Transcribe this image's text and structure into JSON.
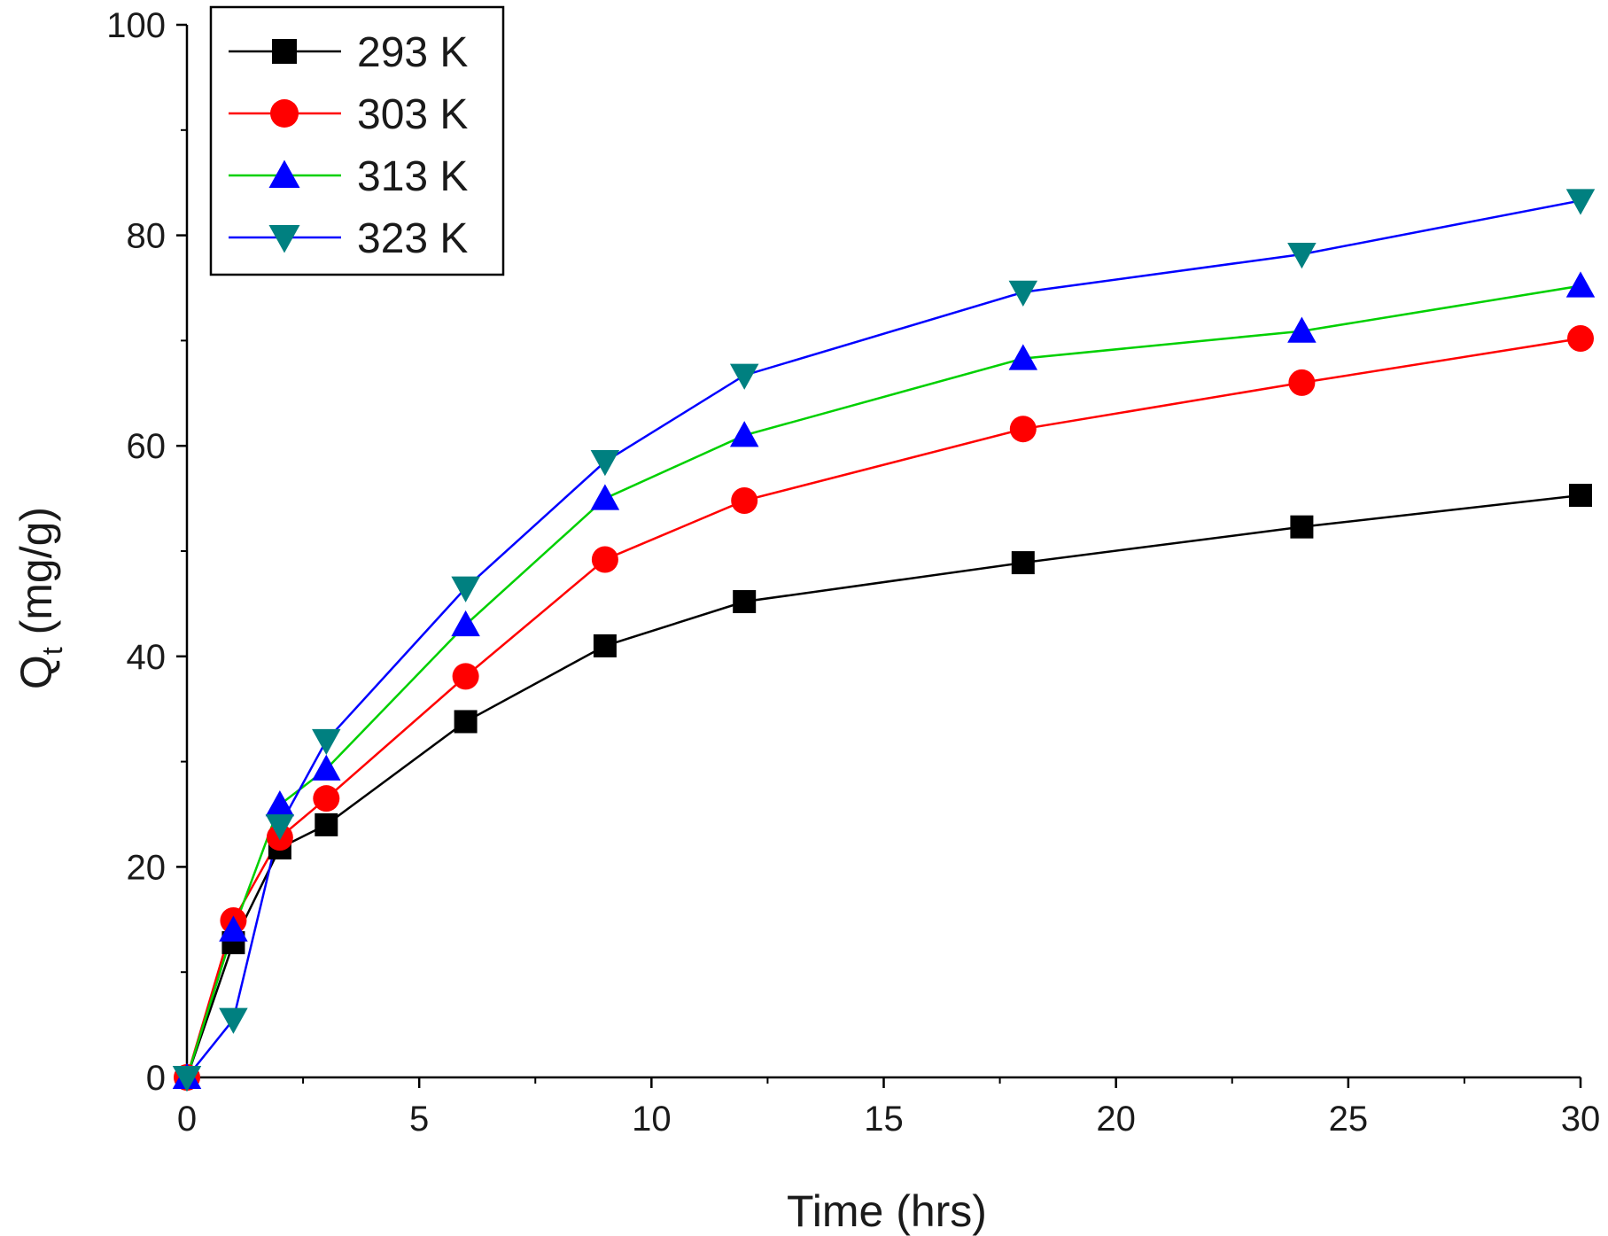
{
  "chart_data": {
    "type": "line",
    "title": "",
    "xlabel": "Time (hrs)",
    "ylabel_main": "Q",
    "ylabel_sub": "t",
    "ylabel_unit": " (mg/g)",
    "xlim": [
      0,
      30
    ],
    "ylim": [
      0,
      100
    ],
    "x_ticks": [
      0,
      5,
      10,
      15,
      20,
      25,
      30
    ],
    "x_tick_labels": [
      "0",
      "5",
      "10",
      "15",
      "20",
      "25",
      "30"
    ],
    "y_ticks": [
      0,
      20,
      40,
      60,
      80,
      100
    ],
    "y_tick_labels": [
      "0",
      "20",
      "40",
      "60",
      "80",
      "100"
    ],
    "x": [
      0,
      1,
      2,
      3,
      6,
      9,
      12,
      18,
      24,
      30
    ],
    "legend_position": "top-left",
    "grid": false,
    "series": [
      {
        "name": "293 K",
        "line_color": "#000000",
        "marker": "square",
        "marker_color": "#000000",
        "values": [
          0,
          12.8,
          21.8,
          24.0,
          33.8,
          41.0,
          45.2,
          48.9,
          52.3,
          55.3
        ]
      },
      {
        "name": "303 K",
        "line_color": "#ff0000",
        "marker": "circle",
        "marker_color": "#ff0000",
        "values": [
          0,
          14.9,
          22.8,
          26.5,
          38.1,
          49.2,
          54.8,
          61.6,
          66.0,
          70.2
        ]
      },
      {
        "name": "313 K",
        "line_color": "#00d000",
        "marker": "triangle-up",
        "marker_color": "#0000ff",
        "values": [
          0,
          14.0,
          25.9,
          29.3,
          43.0,
          55.0,
          61.0,
          68.3,
          70.9,
          75.2
        ]
      },
      {
        "name": "323 K",
        "line_color": "#0000ff",
        "marker": "triangle-down",
        "marker_color": "#008080",
        "values": [
          0,
          5.5,
          23.9,
          32.0,
          46.5,
          58.5,
          66.7,
          74.6,
          78.2,
          83.3
        ]
      }
    ]
  }
}
